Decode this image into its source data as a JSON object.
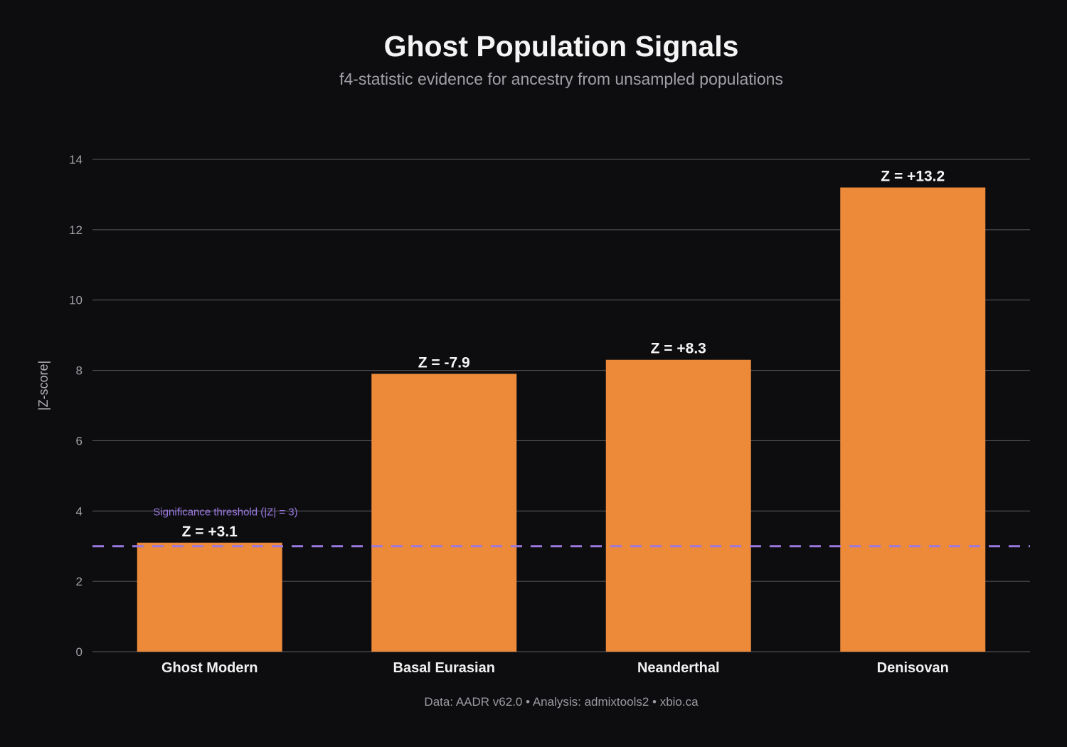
{
  "chart_data": {
    "type": "bar",
    "title": "Ghost Population Signals",
    "subtitle": "f4-statistic evidence for ancestry from unsampled populations",
    "xlabel": "",
    "ylabel": "|Z-score|",
    "ylim": [
      0,
      14
    ],
    "yticks": [
      0,
      2,
      4,
      6,
      8,
      10,
      12,
      14
    ],
    "grid": true,
    "categories": [
      "Ghost Modern",
      "Basal Eurasian",
      "Neanderthal",
      "Denisovan"
    ],
    "values": [
      3.1,
      7.9,
      8.3,
      13.2
    ],
    "data_labels": [
      "Z = +3.1",
      "Z = -7.9",
      "Z = +8.3",
      "Z = +13.2"
    ],
    "threshold": {
      "value": 3,
      "label": "Significance threshold (|Z| = 3)",
      "color": "#9b78e0"
    },
    "bar_color": "#ec8a3a",
    "footer": "Data: AADR v62.0  •  Analysis: admixtools2  •  xbio.ca"
  }
}
